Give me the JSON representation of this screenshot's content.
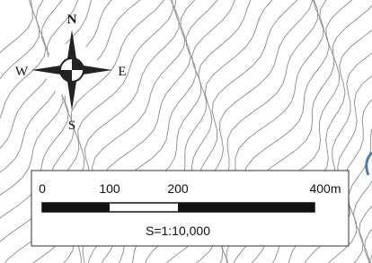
{
  "compass": {
    "north": "N",
    "east": "E",
    "south": "S",
    "west": "W"
  },
  "scale_bar": {
    "ticks": [
      "0",
      "100",
      "200",
      "400m"
    ],
    "ratio": "S=1:10,000"
  }
}
